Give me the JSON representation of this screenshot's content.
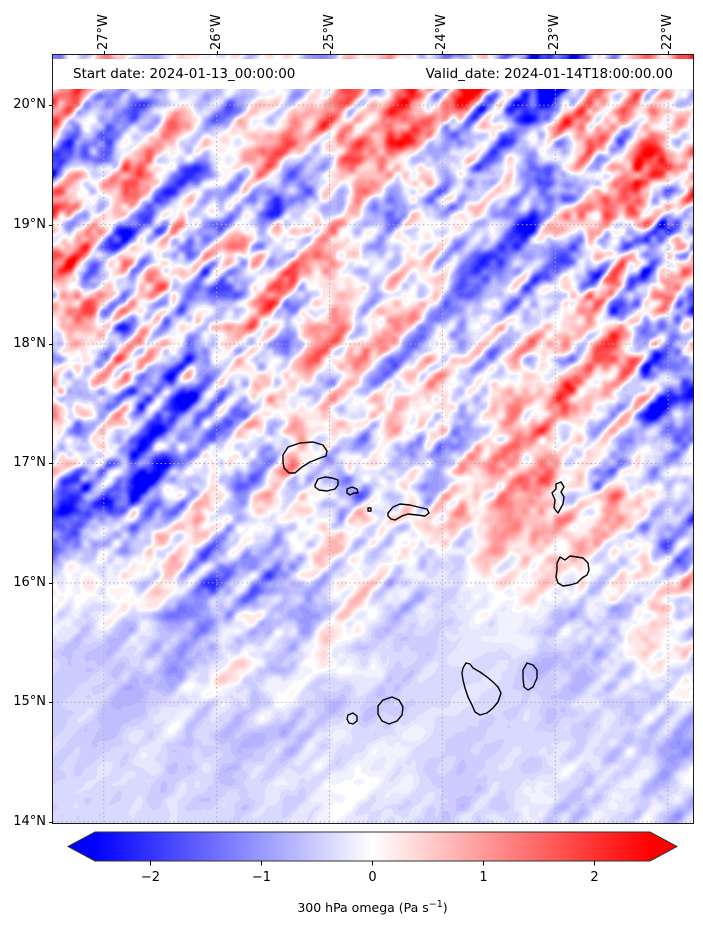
{
  "map": {
    "title_left": "Start date: 2024-01-13_00:00:00",
    "title_right": "Valid_date: 2024-01-14T18:00:00.00",
    "extent": {
      "lon_min": -27.45,
      "lon_max": -21.78,
      "lat_min": 13.99,
      "lat_max": 20.42
    },
    "x_ticks": [
      {
        "label": "27°W",
        "lon": -27
      },
      {
        "label": "26°W",
        "lon": -26
      },
      {
        "label": "25°W",
        "lon": -25
      },
      {
        "label": "24°W",
        "lon": -24
      },
      {
        "label": "23°W",
        "lon": -23
      },
      {
        "label": "22°W",
        "lon": -22
      }
    ],
    "y_ticks": [
      {
        "label": "20°N",
        "lat": 20
      },
      {
        "label": "19°N",
        "lat": 19
      },
      {
        "label": "18°N",
        "lat": 18
      },
      {
        "label": "17°N",
        "lat": 17
      },
      {
        "label": "16°N",
        "lat": 16
      },
      {
        "label": "15°N",
        "lat": 15
      },
      {
        "label": "14°N",
        "lat": 14
      }
    ],
    "gridline_lons": [
      -27,
      -26,
      -25,
      -24,
      -23,
      -22
    ],
    "gridline_lats": [
      14,
      15,
      16,
      17,
      18,
      19,
      20
    ],
    "islands": [
      {
        "name": "santo-antao",
        "points": [
          [
            230,
            400
          ],
          [
            235,
            392
          ],
          [
            247,
            388
          ],
          [
            260,
            387
          ],
          [
            270,
            390
          ],
          [
            274,
            396
          ],
          [
            273,
            401
          ],
          [
            267,
            403
          ],
          [
            257,
            407
          ],
          [
            249,
            412
          ],
          [
            242,
            418
          ],
          [
            236,
            418
          ],
          [
            231,
            413
          ],
          [
            230,
            407
          ]
        ]
      },
      {
        "name": "sao-vicente",
        "points": [
          [
            262,
            430
          ],
          [
            265,
            424
          ],
          [
            272,
            422
          ],
          [
            279,
            423
          ],
          [
            285,
            425
          ],
          [
            285,
            430
          ],
          [
            282,
            434
          ],
          [
            274,
            436
          ],
          [
            266,
            435
          ],
          [
            262,
            432
          ]
        ]
      },
      {
        "name": "santa-luzia",
        "points": [
          [
            294,
            434
          ],
          [
            299,
            432
          ],
          [
            304,
            434
          ],
          [
            305,
            438
          ],
          [
            301,
            438
          ],
          [
            297,
            440
          ],
          [
            294,
            438
          ]
        ]
      },
      {
        "name": "raso-islet",
        "points": [
          [
            315,
            453
          ],
          [
            318,
            453
          ],
          [
            318,
            456
          ],
          [
            315,
            456
          ]
        ]
      },
      {
        "name": "sao-nicolau",
        "points": [
          [
            335,
            458
          ],
          [
            340,
            452
          ],
          [
            347,
            449
          ],
          [
            357,
            450
          ],
          [
            365,
            452
          ],
          [
            374,
            454
          ],
          [
            376,
            458
          ],
          [
            372,
            461
          ],
          [
            364,
            460
          ],
          [
            355,
            459
          ],
          [
            349,
            461
          ],
          [
            342,
            465
          ],
          [
            338,
            464
          ],
          [
            335,
            461
          ]
        ]
      },
      {
        "name": "sal",
        "points": [
          [
            503,
            429
          ],
          [
            508,
            427
          ],
          [
            511,
            432
          ],
          [
            508,
            437
          ],
          [
            511,
            442
          ],
          [
            510,
            449
          ],
          [
            505,
            458
          ],
          [
            501,
            453
          ],
          [
            502,
            445
          ],
          [
            499,
            438
          ],
          [
            503,
            434
          ]
        ]
      },
      {
        "name": "boa-vista",
        "points": [
          [
            507,
            502
          ],
          [
            512,
            505
          ],
          [
            517,
            501
          ],
          [
            524,
            502
          ],
          [
            530,
            503
          ],
          [
            535,
            508
          ],
          [
            536,
            515
          ],
          [
            534,
            520
          ],
          [
            529,
            523
          ],
          [
            524,
            528
          ],
          [
            517,
            530
          ],
          [
            510,
            531
          ],
          [
            505,
            528
          ],
          [
            503,
            522
          ],
          [
            504,
            515
          ],
          [
            504,
            508
          ]
        ]
      },
      {
        "name": "maio",
        "points": [
          [
            474,
            608
          ],
          [
            480,
            610
          ],
          [
            484,
            615
          ],
          [
            484,
            623
          ],
          [
            480,
            632
          ],
          [
            475,
            635
          ],
          [
            471,
            632
          ],
          [
            470,
            623
          ],
          [
            470,
            615
          ]
        ]
      },
      {
        "name": "santiago",
        "points": [
          [
            410,
            613
          ],
          [
            413,
            608
          ],
          [
            417,
            609
          ],
          [
            420,
            613
          ],
          [
            427,
            617
          ],
          [
            434,
            622
          ],
          [
            440,
            627
          ],
          [
            445,
            632
          ],
          [
            448,
            638
          ],
          [
            445,
            647
          ],
          [
            440,
            653
          ],
          [
            434,
            658
          ],
          [
            427,
            660
          ],
          [
            422,
            657
          ],
          [
            419,
            650
          ],
          [
            415,
            642
          ],
          [
            412,
            633
          ],
          [
            410,
            625
          ],
          [
            409,
            618
          ]
        ]
      },
      {
        "name": "fogo",
        "points": [
          [
            330,
            645
          ],
          [
            339,
            642
          ],
          [
            346,
            645
          ],
          [
            350,
            652
          ],
          [
            349,
            660
          ],
          [
            344,
            666
          ],
          [
            336,
            669
          ],
          [
            329,
            666
          ],
          [
            325,
            659
          ],
          [
            325,
            651
          ]
        ]
      },
      {
        "name": "brava",
        "points": [
          [
            295,
            660
          ],
          [
            300,
            658
          ],
          [
            304,
            661
          ],
          [
            304,
            666
          ],
          [
            300,
            669
          ],
          [
            296,
            668
          ],
          [
            294,
            664
          ]
        ]
      }
    ]
  },
  "colorbar": {
    "orientation": "horizontal",
    "vmin": -2.5,
    "vmax": 2.5,
    "extend": "both",
    "cmap": "bwr",
    "color_stops": [
      {
        "v": -2.5,
        "hex": "#0000ff"
      },
      {
        "v": 0,
        "hex": "#ffffff"
      },
      {
        "v": 2.5,
        "hex": "#ff0000"
      }
    ],
    "ticks": [
      {
        "label": "−2",
        "value": -2
      },
      {
        "label": "−1",
        "value": -1
      },
      {
        "label": "0",
        "value": 0
      },
      {
        "label": "1",
        "value": 1
      },
      {
        "label": "2",
        "value": 2
      }
    ],
    "label_parts": {
      "prefix": "300 hPa omega (Pa s",
      "superscript": "−1",
      "suffix": ")"
    }
  },
  "chart_data": {
    "type": "heatmap",
    "title": "Start date: 2024-01-13_00:00:00  |  Valid_date: 2024-01-14T18:00:00.00",
    "field": "300 hPa vertical velocity (omega)",
    "units": "Pa s−1",
    "region": "Cape Verde islands, eastern tropical Atlantic",
    "x_tick_labels": [
      "27°W",
      "26°W",
      "25°W",
      "24°W",
      "23°W",
      "22°W"
    ],
    "y_tick_labels": [
      "20°N",
      "19°N",
      "18°N",
      "17°N",
      "16°N",
      "15°N",
      "14°N"
    ],
    "xlim_lon": [
      -27.45,
      -21.78
    ],
    "ylim_lat": [
      13.99,
      20.42
    ],
    "value_range": [
      -2.5,
      2.5
    ],
    "colorbar_label": "300 hPa omega (Pa s−1)",
    "grid": "dotted 1-degree graticule",
    "legend_position": "horizontal colorbar below map, arrow extensions both ends",
    "pattern_summary": [
      "North of ~15.5N: turbulent field of fine alternating ascent/descent streaks (±1 to ±2.5 Pa/s), oriented mostly SW–NE, strongest between 17N–20N and 26.5W–23.5W",
      "Saturated red (>+2.5) and deep blue (<−2.5) cells near 24.2W/20.2N, 26W/19N and 27.2W/18N",
      "South of ~15.5N: smooth weak field, broad pale-blue SW–NE bands around −0.2 to −0.6 Pa/s with faint pink patches",
      "Island coastlines drawn in black with no fill over the omega field"
    ],
    "coarse_grid": {
      "lons": [
        -27,
        -26,
        -25,
        -24,
        -23,
        -22
      ],
      "lats": [
        20,
        19,
        18,
        17,
        16,
        15,
        14
      ],
      "approx_mean_values": [
        [
          -0.1,
          0.2,
          0.4,
          0.3,
          -0.2,
          -0.1
        ],
        [
          0.3,
          0.6,
          0.2,
          0.1,
          0.2,
          0.1
        ],
        [
          -0.4,
          0.2,
          0.3,
          0.2,
          -0.1,
          0.2
        ],
        [
          -0.2,
          0.1,
          0.3,
          -0.2,
          -0.1,
          0.1
        ],
        [
          -0.3,
          -0.2,
          0.1,
          -0.2,
          -0.2,
          -0.1
        ],
        [
          -0.3,
          -0.2,
          -0.3,
          -0.2,
          -0.3,
          -0.2
        ],
        [
          -0.4,
          -0.3,
          -0.3,
          -0.3,
          -0.2,
          -0.3
        ]
      ]
    }
  }
}
